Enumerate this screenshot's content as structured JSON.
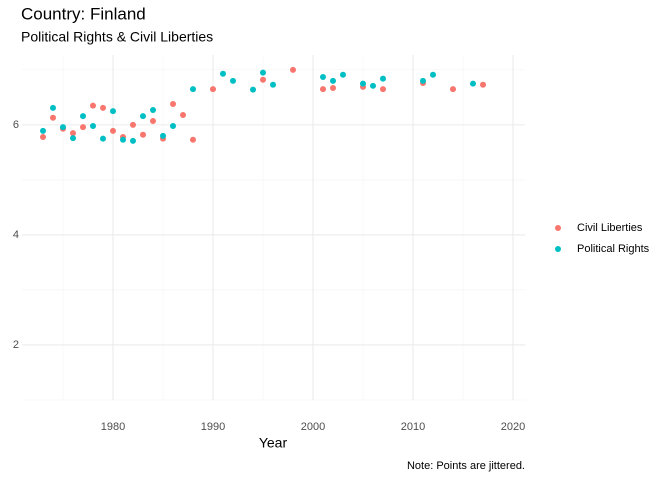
{
  "chart_data": {
    "type": "scatter",
    "title": "Country: Finland",
    "subtitle": "Political Rights & Civil Liberties",
    "x_label": "Year",
    "caption": "Note: Points are jittered.",
    "xlim": [
      1970.9,
      2021.2
    ],
    "ylim": [
      1,
      7.27
    ],
    "xticks": [
      1980,
      1990,
      2000,
      2010,
      2020
    ],
    "yticks": [
      2,
      4,
      6
    ],
    "xminor": [
      1975,
      1985,
      1995,
      2005,
      2015
    ],
    "yminor": [
      1,
      3,
      5,
      7
    ],
    "grid": true,
    "legend": "right",
    "series": [
      {
        "name": "Civil Liberties",
        "color": "#F8766D",
        "x": [
          1973,
          1974,
          1975,
          1976,
          1977,
          1978,
          1979,
          1980,
          1981,
          1982,
          1983,
          1984,
          1985,
          1986,
          1987,
          1988,
          1990,
          1995,
          1998,
          2001,
          2002,
          2005,
          2007,
          2011,
          2014,
          2017
        ],
        "values": [
          5.78,
          6.13,
          5.93,
          5.85,
          5.96,
          6.35,
          6.31,
          5.89,
          5.78,
          6.0,
          5.82,
          6.07,
          5.75,
          6.38,
          6.18,
          5.73,
          6.65,
          6.82,
          7.0,
          6.65,
          6.67,
          6.69,
          6.65,
          6.76,
          6.65,
          6.73
        ]
      },
      {
        "name": "Political Rights",
        "color": "#00BFC4",
        "x": [
          1973,
          1974,
          1975,
          1976,
          1977,
          1978,
          1979,
          1980,
          1981,
          1982,
          1983,
          1984,
          1985,
          1986,
          1988,
          1991,
          1992,
          1994,
          1995,
          1996,
          2001,
          2002,
          2003,
          2005,
          2006,
          2007,
          2011,
          2012,
          2016
        ],
        "values": [
          5.89,
          6.31,
          5.96,
          5.76,
          6.16,
          5.98,
          5.75,
          6.25,
          5.73,
          5.71,
          6.16,
          6.27,
          5.8,
          5.98,
          6.65,
          6.93,
          6.8,
          6.64,
          6.95,
          6.73,
          6.87,
          6.8,
          6.91,
          6.75,
          6.71,
          6.84,
          6.8,
          6.91,
          6.75
        ]
      }
    ]
  }
}
